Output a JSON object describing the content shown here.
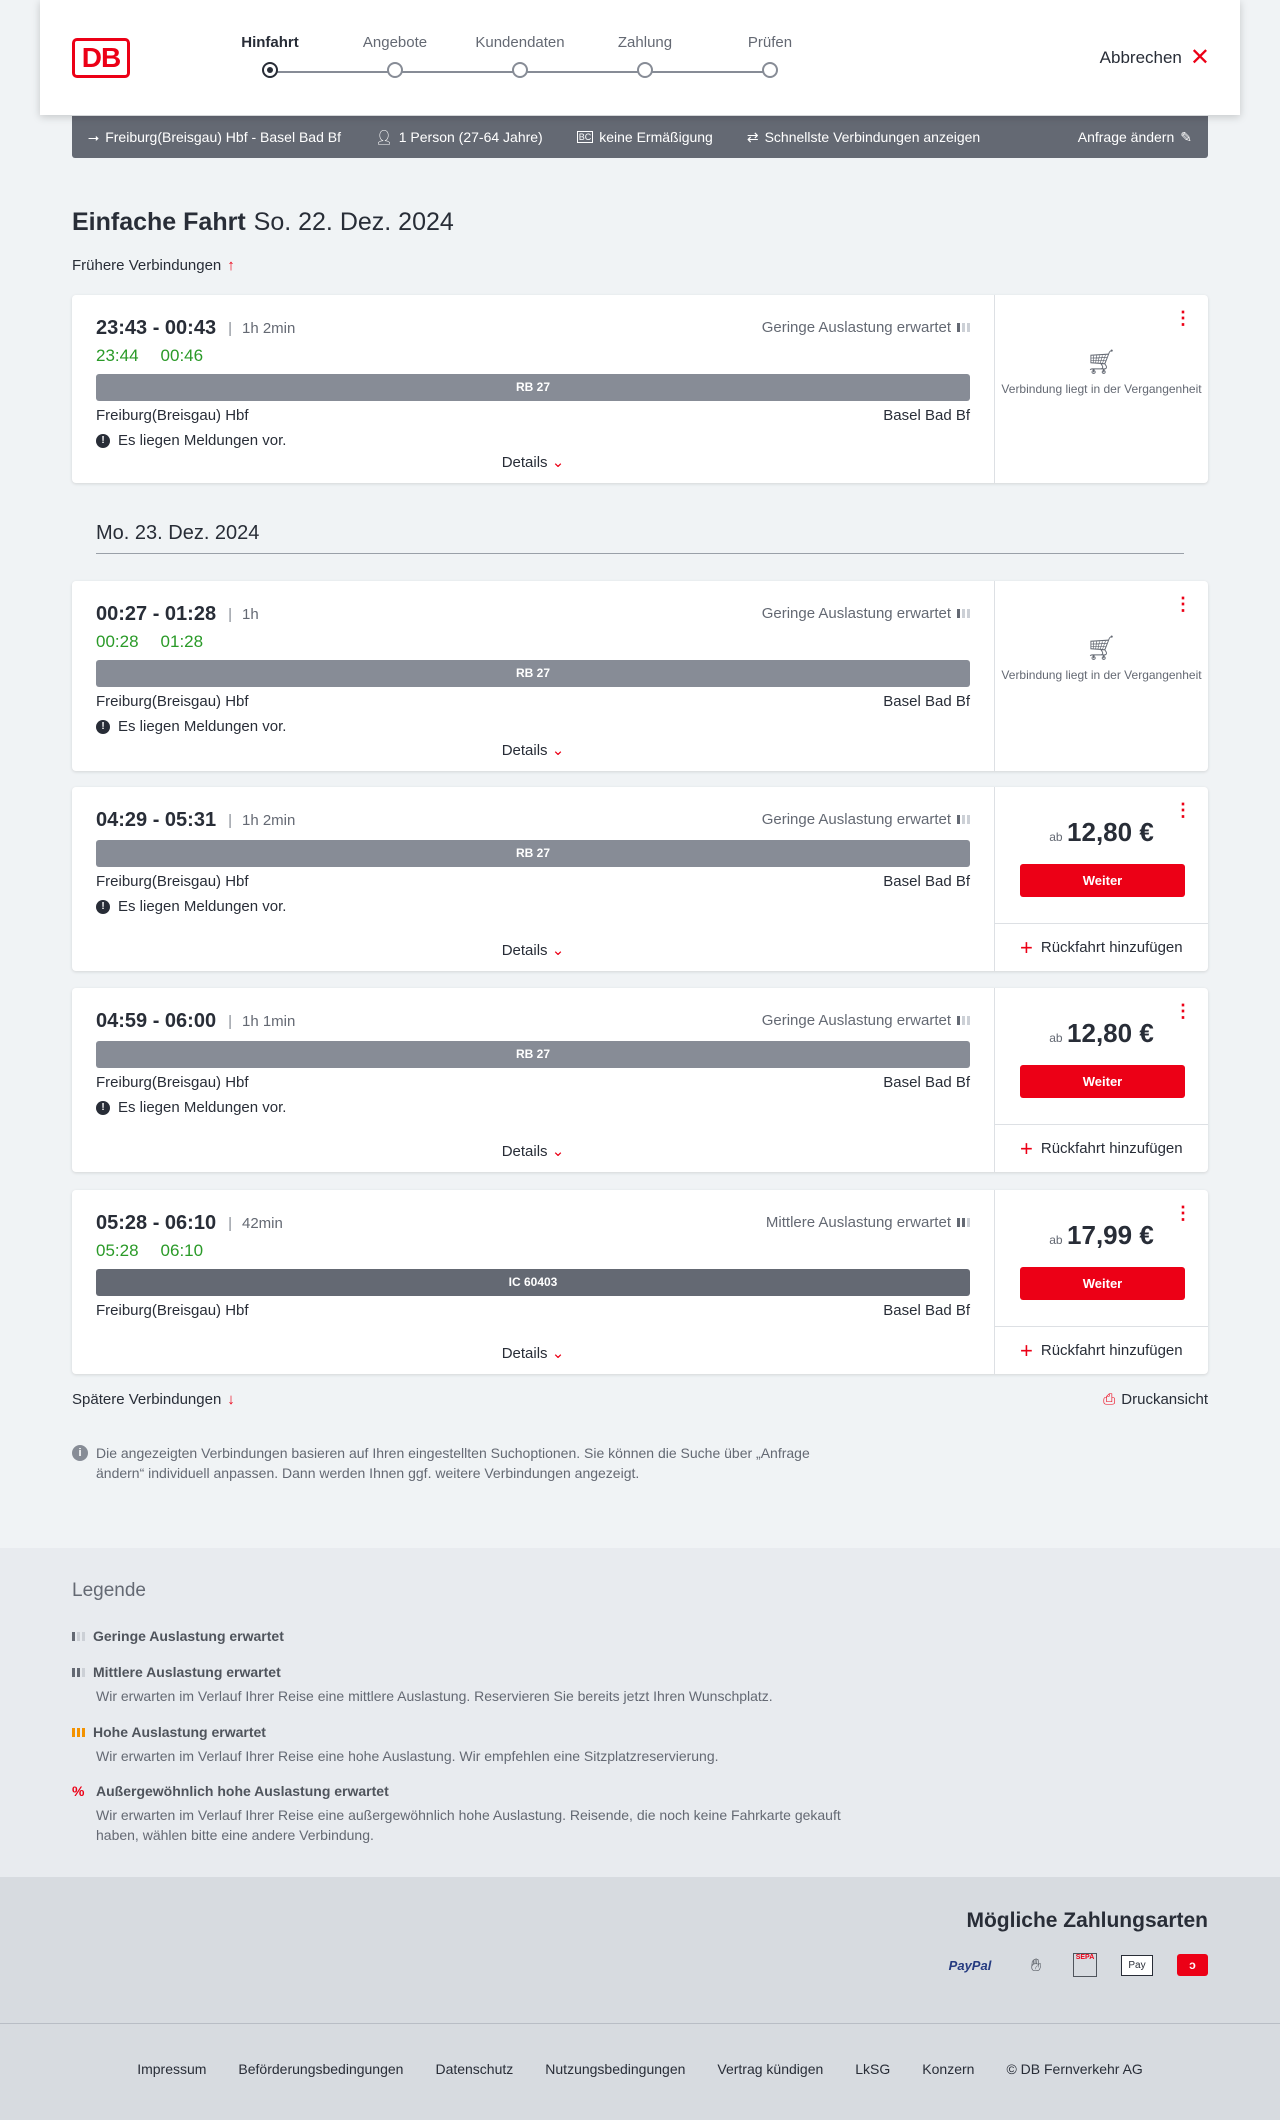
{
  "header": {
    "logo": "DB",
    "steps": [
      "Hinfahrt",
      "Angebote",
      "Kundendaten",
      "Zahlung",
      "Prüfen"
    ],
    "active_step": 0,
    "cancel": "Abbrechen"
  },
  "infobar": {
    "route": "Freiburg(Breisgau) Hbf - Basel Bad Bf",
    "persons": "1 Person (27-64 Jahre)",
    "discount": "keine Ermäßigung",
    "fastest": "Schnellste Verbindungen anzeigen",
    "edit": "Anfrage ändern"
  },
  "title": {
    "type": "Einfache Fahrt",
    "date": "So. 22. Dez. 2024"
  },
  "earlier": "Frühere Verbindungen",
  "date2": "Mo. 23. Dez. 2024",
  "connections": [
    {
      "time": "23:43 - 00:43",
      "duration": "1h 2min",
      "load": "Geringe Auslastung erwartet",
      "rt_dep": "23:44",
      "rt_arr": "00:46",
      "train": "RB 27",
      "from": "Freiburg(Breisgau) Hbf",
      "to": "Basel Bad Bf",
      "message": "Es liegen Meldungen vor.",
      "details": "Details",
      "past": "Verbindung liegt in der Vergangenheit"
    },
    {
      "time": "00:27 - 01:28",
      "duration": "1h",
      "load": "Geringe Auslastung erwartet",
      "rt_dep": "00:28",
      "rt_arr": "01:28",
      "train": "RB 27",
      "from": "Freiburg(Breisgau) Hbf",
      "to": "Basel Bad Bf",
      "message": "Es liegen Meldungen vor.",
      "details": "Details",
      "past": "Verbindung liegt in der Vergangenheit"
    },
    {
      "time": "04:29 - 05:31",
      "duration": "1h 2min",
      "load": "Geringe Auslastung erwartet",
      "train": "RB 27",
      "from": "Freiburg(Breisgau) Hbf",
      "to": "Basel Bad Bf",
      "message": "Es liegen Meldungen vor.",
      "details": "Details",
      "ab": "ab",
      "price": "12,80 €",
      "button": "Weiter",
      "return": "Rückfahrt hinzufügen"
    },
    {
      "time": "04:59 - 06:00",
      "duration": "1h 1min",
      "load": "Geringe Auslastung erwartet",
      "train": "RB 27",
      "from": "Freiburg(Breisgau) Hbf",
      "to": "Basel Bad Bf",
      "message": "Es liegen Meldungen vor.",
      "details": "Details",
      "ab": "ab",
      "price": "12,80 €",
      "button": "Weiter",
      "return": "Rückfahrt hinzufügen"
    },
    {
      "time": "05:28 - 06:10",
      "duration": "42min",
      "load": "Mittlere Auslastung erwartet",
      "rt_dep": "05:28",
      "rt_arr": "06:10",
      "train": "IC 60403",
      "from": "Freiburg(Breisgau) Hbf",
      "to": "Basel Bad Bf",
      "details": "Details",
      "ab": "ab",
      "price": "17,99 €",
      "button": "Weiter",
      "return": "Rückfahrt hinzufügen"
    }
  ],
  "later": "Spätere Verbindungen",
  "print": "Druckansicht",
  "note": "Die angezeigten Verbindungen basieren auf Ihren eingestellten Suchoptionen. Sie können die Suche über „Anfrage ändern“ individuell anpassen. Dann werden Ihnen ggf. weitere Verbindungen angezeigt.",
  "legend": {
    "title": "Legende",
    "items": [
      {
        "label": "Geringe Auslastung erwartet",
        "text": ""
      },
      {
        "label": "Mittlere Auslastung erwartet",
        "text": "Wir erwarten im Verlauf Ihrer Reise eine mittlere Auslastung. Reservieren Sie bereits jetzt Ihren Wunschplatz."
      },
      {
        "label": "Hohe Auslastung erwartet",
        "text": "Wir erwarten im Verlauf Ihrer Reise eine hohe Auslastung. Wir empfehlen eine Sitzplatzreservierung."
      },
      {
        "label": "Außergewöhnlich hohe Auslastung erwartet",
        "text": "Wir erwarten im Verlauf Ihrer Reise eine außergewöhnlich hohe Auslastung. Reisende, die noch keine Fahrkarte gekauft haben, wählen bitte eine andere Verbindung."
      }
    ]
  },
  "payment": {
    "title": "Mögliche Zahlungsarten",
    "methods": [
      "PayPal",
      "SEPA",
      "Pay"
    ]
  },
  "footer": [
    "Impressum",
    "Beförderungsbedingungen",
    "Datenschutz",
    "Nutzungsbedingungen",
    "Vertrag kündigen",
    "LkSG",
    "Konzern",
    "© DB Fernverkehr AG"
  ],
  "colors": {
    "brand": "#ec0016",
    "realtime": "#2a9a28",
    "train_bar": "#878c96",
    "ic_bar": "#646973"
  }
}
